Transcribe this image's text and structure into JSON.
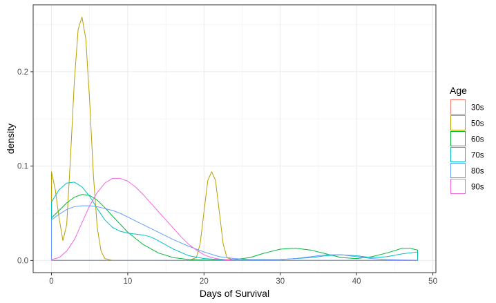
{
  "chart_data": {
    "type": "line",
    "subtype": "density",
    "xlabel": "Days of Survival",
    "ylabel": "density",
    "xlim": [
      -2.4,
      50.4
    ],
    "ylim": [
      -0.0129,
      0.2709
    ],
    "x_ticks": [
      0,
      10,
      20,
      30,
      40,
      50
    ],
    "x_tick_labels": [
      "0",
      "10",
      "20",
      "30",
      "40",
      "50"
    ],
    "y_ticks": [
      0.0,
      0.1,
      0.2
    ],
    "y_tick_labels": [
      "0.0",
      "0.1",
      "0.2"
    ],
    "grid": true,
    "legend": {
      "title": "Age",
      "position": "right",
      "entries": [
        "30s",
        "50s",
        "60s",
        "70s",
        "80s",
        "90s"
      ]
    },
    "series": [
      {
        "name": "30s",
        "color": "#F8766D",
        "x": [
          0,
          48
        ],
        "y": [
          0,
          0
        ]
      },
      {
        "name": "50s",
        "color": "#B79F00",
        "x": [
          0,
          0.5,
          1,
          1.5,
          2,
          2.5,
          3,
          3.5,
          4,
          4.5,
          5,
          5.5,
          6,
          6.5,
          7,
          8,
          10,
          15,
          18,
          19,
          19.5,
          20,
          20.5,
          21,
          21.5,
          22,
          22.5,
          23,
          24,
          30,
          40,
          48
        ],
        "y": [
          0.094,
          0.075,
          0.045,
          0.021,
          0.038,
          0.11,
          0.19,
          0.245,
          0.258,
          0.235,
          0.17,
          0.09,
          0.035,
          0.01,
          0.002,
          0,
          0,
          0,
          0,
          0.003,
          0.018,
          0.052,
          0.085,
          0.094,
          0.085,
          0.052,
          0.018,
          0.003,
          0,
          0,
          0,
          0
        ]
      },
      {
        "name": "60s",
        "color": "#00BA38",
        "x": [
          0,
          1,
          2,
          3,
          4,
          5,
          6,
          7,
          8,
          10,
          12,
          14,
          16,
          18,
          20,
          22,
          24,
          26,
          28,
          30,
          32,
          34,
          36,
          38,
          40,
          42,
          44,
          46,
          47,
          48
        ],
        "y": [
          0.045,
          0.053,
          0.061,
          0.067,
          0.07,
          0.069,
          0.064,
          0.056,
          0.047,
          0.03,
          0.017,
          0.008,
          0.003,
          0.001,
          0.0005,
          0.0005,
          0.001,
          0.003,
          0.008,
          0.012,
          0.013,
          0.011,
          0.007,
          0.003,
          0.002,
          0.004,
          0.008,
          0.013,
          0.013,
          0.011
        ]
      },
      {
        "name": "70s",
        "color": "#00BFC4",
        "x": [
          0,
          1,
          2,
          3,
          4,
          5,
          6,
          7,
          8,
          9,
          10,
          11,
          12,
          13,
          14,
          16,
          18,
          20,
          22,
          24,
          26,
          30,
          34,
          36,
          38,
          40,
          42,
          44,
          46,
          48
        ],
        "y": [
          0.062,
          0.075,
          0.082,
          0.083,
          0.078,
          0.068,
          0.055,
          0.043,
          0.035,
          0.031,
          0.029,
          0.028,
          0.027,
          0.025,
          0.021,
          0.012,
          0.005,
          0.002,
          0.001,
          0.0005,
          0.0005,
          0.001,
          0.003,
          0.005,
          0.006,
          0.005,
          0.003,
          0.004,
          0.007,
          0.009
        ]
      },
      {
        "name": "80s",
        "color": "#619CFF",
        "x": [
          0,
          1,
          2,
          3,
          4,
          5,
          6,
          7,
          8,
          9,
          10,
          12,
          14,
          16,
          18,
          20,
          22,
          24,
          26,
          28,
          30,
          32,
          34,
          36,
          38,
          40,
          42,
          44,
          46,
          48
        ],
        "y": [
          0.043,
          0.049,
          0.054,
          0.057,
          0.058,
          0.058,
          0.057,
          0.055,
          0.053,
          0.05,
          0.046,
          0.038,
          0.03,
          0.022,
          0.015,
          0.009,
          0.004,
          0.002,
          0.001,
          0.001,
          0.001,
          0.002,
          0.004,
          0.006,
          0.006,
          0.004,
          0.002,
          0.001,
          0.0005,
          0.0003
        ]
      },
      {
        "name": "90s",
        "color": "#F564E3",
        "x": [
          0,
          1,
          2,
          3,
          4,
          5,
          6,
          7,
          8,
          9,
          10,
          11,
          12,
          13,
          14,
          15,
          16,
          17,
          18,
          19,
          20,
          21,
          22,
          23,
          24,
          25,
          26,
          30,
          40,
          48
        ],
        "y": [
          0.001,
          0.003,
          0.01,
          0.022,
          0.04,
          0.058,
          0.072,
          0.082,
          0.087,
          0.087,
          0.084,
          0.078,
          0.07,
          0.061,
          0.052,
          0.043,
          0.034,
          0.025,
          0.017,
          0.011,
          0.006,
          0.003,
          0.0015,
          0.0007,
          0.0003,
          0.0001,
          0,
          0,
          0,
          0
        ]
      }
    ]
  }
}
